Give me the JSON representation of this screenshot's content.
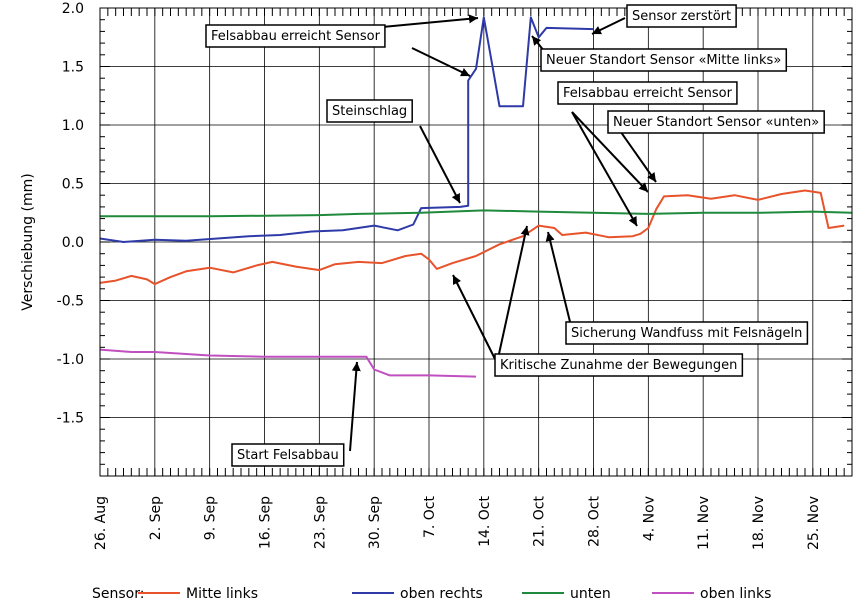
{
  "chart_data": {
    "type": "line",
    "title": "",
    "ylabel": "Verschiebung (mm)",
    "xlabel": "",
    "ylim": [
      -2.0,
      2.0
    ],
    "y_ticks": [
      "2.0",
      "1.5",
      "1.0",
      "0.5",
      "0.0",
      "-0.5",
      "-1.0",
      "-1.5"
    ],
    "y_tick_values": [
      2.0,
      1.5,
      1.0,
      0.5,
      0.0,
      -0.5,
      -1.0,
      -1.5
    ],
    "x_ticks": [
      "26. Aug",
      "2. Sep",
      "9. Sep",
      "16. Sep",
      "23. Sep",
      "30. Sep",
      "7. Oct",
      "14. Oct",
      "21. Oct",
      "28. Oct",
      "4. Nov",
      "11. Nov",
      "18. Nov",
      "25. Nov"
    ],
    "x_tick_dates": [
      "2021-08-26",
      "2021-09-02",
      "2021-09-09",
      "2021-09-16",
      "2021-09-23",
      "2021-09-30",
      "2021-10-07",
      "2021-10-14",
      "2021-10-21",
      "2021-10-28",
      "2021-11-04",
      "2021-11-11",
      "2021-11-18",
      "2021-11-25"
    ],
    "xlim": [
      "2021-08-26",
      "2021-11-30"
    ],
    "grid": "major lines at every tick",
    "legend": {
      "title": "Sensor:",
      "placement": "bottom",
      "entries": [
        {
          "label": "Mitte links",
          "color": "#e8532b"
        },
        {
          "label": "oben rechts",
          "color": "#2e3aa8"
        },
        {
          "label": "unten",
          "color": "#1f8a3c"
        },
        {
          "label": "oben links",
          "color": "#c04fc0"
        }
      ]
    },
    "series": [
      {
        "name": "Mitte links",
        "color": "#e8532b",
        "points": [
          [
            "2021-08-26",
            -0.35
          ],
          [
            "2021-08-28",
            -0.33
          ],
          [
            "2021-08-30",
            -0.29
          ],
          [
            "2021-09-01",
            -0.32
          ],
          [
            "2021-09-02",
            -0.36
          ],
          [
            "2021-09-04",
            -0.3
          ],
          [
            "2021-09-06",
            -0.25
          ],
          [
            "2021-09-09",
            -0.22
          ],
          [
            "2021-09-12",
            -0.26
          ],
          [
            "2021-09-15",
            -0.2
          ],
          [
            "2021-09-17",
            -0.17
          ],
          [
            "2021-09-20",
            -0.21
          ],
          [
            "2021-09-23",
            -0.24
          ],
          [
            "2021-09-25",
            -0.19
          ],
          [
            "2021-09-28",
            -0.17
          ],
          [
            "2021-10-01",
            -0.18
          ],
          [
            "2021-10-04",
            -0.12
          ],
          [
            "2021-10-06",
            -0.1
          ],
          [
            "2021-10-07",
            -0.15
          ],
          [
            "2021-10-08",
            -0.23
          ],
          [
            "2021-10-10",
            -0.18
          ],
          [
            "2021-10-13",
            -0.12
          ],
          [
            "2021-10-16",
            -0.02
          ],
          [
            "2021-10-19",
            0.05
          ],
          [
            "2021-10-21",
            0.14
          ],
          [
            "2021-10-23",
            0.12
          ],
          [
            "2021-10-24",
            0.06
          ],
          [
            "2021-10-27",
            0.08
          ],
          [
            "2021-10-30",
            0.04
          ],
          [
            "2021-11-02",
            0.05
          ],
          [
            "2021-11-03",
            0.07
          ],
          [
            "2021-11-04",
            0.12
          ],
          [
            "2021-11-05",
            0.28
          ],
          [
            "2021-11-06",
            0.39
          ],
          [
            "2021-11-09",
            0.4
          ],
          [
            "2021-11-12",
            0.37
          ],
          [
            "2021-11-15",
            0.4
          ],
          [
            "2021-11-18",
            0.36
          ],
          [
            "2021-11-21",
            0.41
          ],
          [
            "2021-11-24",
            0.44
          ],
          [
            "2021-11-26",
            0.42
          ],
          [
            "2021-11-27",
            0.12
          ],
          [
            "2021-11-29",
            0.14
          ]
        ]
      },
      {
        "name": "oben rechts",
        "color": "#2e3aa8",
        "points": [
          [
            "2021-08-26",
            0.03
          ],
          [
            "2021-08-29",
            0.0
          ],
          [
            "2021-09-02",
            0.02
          ],
          [
            "2021-09-06",
            0.01
          ],
          [
            "2021-09-10",
            0.03
          ],
          [
            "2021-09-14",
            0.05
          ],
          [
            "2021-09-18",
            0.06
          ],
          [
            "2021-09-22",
            0.09
          ],
          [
            "2021-09-26",
            0.1
          ],
          [
            "2021-09-30",
            0.14
          ],
          [
            "2021-10-03",
            0.1
          ],
          [
            "2021-10-05",
            0.15
          ],
          [
            "2021-10-06",
            0.29
          ],
          [
            "2021-10-11",
            0.3
          ],
          [
            "2021-10-12",
            0.31
          ],
          [
            "2021-10-12",
            1.38
          ],
          [
            "2021-10-13",
            1.48
          ],
          [
            "2021-10-14",
            1.92
          ],
          [
            "2021-10-15",
            1.54
          ],
          [
            "2021-10-16",
            1.16
          ],
          [
            "2021-10-19",
            1.16
          ],
          [
            "2021-10-20",
            1.92
          ],
          [
            "2021-10-21",
            1.75
          ],
          [
            "2021-10-22",
            1.83
          ],
          [
            "2021-10-28",
            1.82
          ]
        ]
      },
      {
        "name": "unten",
        "color": "#1f8a3c",
        "points": [
          [
            "2021-08-26",
            0.22
          ],
          [
            "2021-09-09",
            0.22
          ],
          [
            "2021-09-23",
            0.23
          ],
          [
            "2021-09-28",
            0.24
          ],
          [
            "2021-10-06",
            0.25
          ],
          [
            "2021-10-14",
            0.27
          ],
          [
            "2021-10-21",
            0.26
          ],
          [
            "2021-10-28",
            0.25
          ],
          [
            "2021-11-04",
            0.24
          ],
          [
            "2021-11-11",
            0.25
          ],
          [
            "2021-11-18",
            0.25
          ],
          [
            "2021-11-25",
            0.26
          ],
          [
            "2021-11-30",
            0.25
          ]
        ]
      },
      {
        "name": "oben links",
        "color": "#c04fc0",
        "points": [
          [
            "2021-08-26",
            -0.92
          ],
          [
            "2021-08-30",
            -0.94
          ],
          [
            "2021-09-02",
            -0.94
          ],
          [
            "2021-09-09",
            -0.97
          ],
          [
            "2021-09-16",
            -0.98
          ],
          [
            "2021-09-23",
            -0.98
          ],
          [
            "2021-09-29",
            -0.98
          ],
          [
            "2021-09-30",
            -1.09
          ],
          [
            "2021-10-02",
            -1.14
          ],
          [
            "2021-10-07",
            -1.14
          ],
          [
            "2021-10-13",
            -1.15
          ]
        ]
      }
    ],
    "annotations": [
      {
        "text": "Felsabbau erreicht Sensor",
        "targets": [
          [
            1.92
          ],
          [
            1.43
          ]
        ]
      },
      {
        "text": "Sensor zerstört"
      },
      {
        "text": "Neuer Standort Sensor «Mitte links»"
      },
      {
        "text": "Steinschlag"
      },
      {
        "text": "Felsabbau erreicht Sensor"
      },
      {
        "text": "Neuer Standort Sensor «unten»"
      },
      {
        "text": "Sicherung Wandfuss mit Felsnägeln"
      },
      {
        "text": "Kritische Zunahme der Bewegungen"
      },
      {
        "text": "Start Felsabbau"
      }
    ]
  }
}
